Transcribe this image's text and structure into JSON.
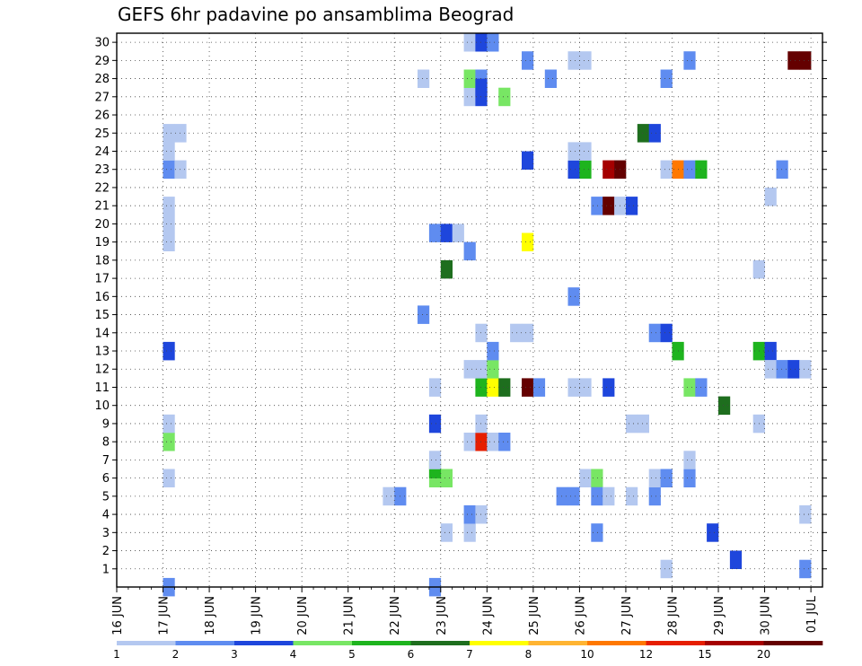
{
  "chart_data": {
    "type": "heatmap",
    "title": "GEFS 6hr padavine po ansamblima Beograd",
    "xlabel": "",
    "ylabel": "",
    "x_tick_labels": [
      "16 JUN",
      "17 JUN",
      "18 JUN",
      "19 JUN",
      "20 JUN",
      "21 JUN",
      "22 JUN",
      "23 JUN",
      "24 JUN",
      "25 JUN",
      "26 JUN",
      "27 JUN",
      "28 JUN",
      "29 JUN",
      "30 JUN",
      "01 JUL"
    ],
    "xlim_days": [
      0,
      15.25
    ],
    "y_tick_labels": [
      "1",
      "2",
      "3",
      "4",
      "5",
      "6",
      "7",
      "8",
      "9",
      "10",
      "11",
      "12",
      "13",
      "14",
      "15",
      "16",
      "17",
      "18",
      "19",
      "20",
      "21",
      "22",
      "23",
      "24",
      "25",
      "26",
      "27",
      "28",
      "29",
      "30"
    ],
    "ylim": [
      0,
      30
    ],
    "grid": true,
    "colorbar": {
      "thresholds": [
        "1",
        "2",
        "3",
        "4",
        "5",
        "6",
        "7",
        "8",
        "10",
        "12",
        "15",
        "20"
      ],
      "colors": [
        "#b4c8f0",
        "#5f8cf0",
        "#1e46dc",
        "#78e664",
        "#1eb41e",
        "#1e6e1e",
        "#ffff00",
        "#ffb432",
        "#ff7800",
        "#e61e00",
        "#a50000",
        "#640000"
      ]
    },
    "cells": [
      {
        "x": 1,
        "y": 0,
        "c": 1
      },
      {
        "x": 1,
        "y": 6,
        "c": 0
      },
      {
        "x": 1,
        "y": 8,
        "c": 3
      },
      {
        "x": 1,
        "y": 9,
        "c": 0
      },
      {
        "x": 1,
        "y": 13,
        "c": 2
      },
      {
        "x": 1,
        "y": 19,
        "c": 0
      },
      {
        "x": 1,
        "y": 20,
        "c": 0
      },
      {
        "x": 1,
        "y": 21,
        "c": 0
      },
      {
        "x": 1,
        "y": 23,
        "c": 1
      },
      {
        "x": 1.25,
        "y": 23,
        "c": 0
      },
      {
        "x": 1,
        "y": 24,
        "c": 0
      },
      {
        "x": 1,
        "y": 25,
        "c": 0
      },
      {
        "x": 1.25,
        "y": 25,
        "c": 0
      },
      {
        "x": 5.75,
        "y": 5,
        "c": 0
      },
      {
        "x": 6,
        "y": 5,
        "c": 1
      },
      {
        "x": 6.5,
        "y": 15,
        "c": 1
      },
      {
        "x": 6.5,
        "y": 28,
        "c": 0
      },
      {
        "x": 6.75,
        "y": 0,
        "c": 1
      },
      {
        "x": 6.75,
        "y": 6,
        "c": 3
      },
      {
        "x": 7,
        "y": 6,
        "c": 3
      },
      {
        "x": 6.75,
        "y": 6.5,
        "c": 4
      },
      {
        "x": 6.75,
        "y": 7,
        "c": 0
      },
      {
        "x": 6.75,
        "y": 9,
        "c": 2
      },
      {
        "x": 6.75,
        "y": 11,
        "c": 0
      },
      {
        "x": 6.75,
        "y": 19.5,
        "c": 1
      },
      {
        "x": 7,
        "y": 19.5,
        "c": 2
      },
      {
        "x": 7.25,
        "y": 19.5,
        "c": 0
      },
      {
        "x": 7,
        "y": 3,
        "c": 0
      },
      {
        "x": 7,
        "y": 17.5,
        "c": 5
      },
      {
        "x": 7.5,
        "y": 3,
        "c": 0
      },
      {
        "x": 7.5,
        "y": 4,
        "c": 1
      },
      {
        "x": 7.75,
        "y": 4,
        "c": 0
      },
      {
        "x": 7.5,
        "y": 8,
        "c": 0
      },
      {
        "x": 7.75,
        "y": 8,
        "c": 9
      },
      {
        "x": 8,
        "y": 8,
        "c": 0
      },
      {
        "x": 8.25,
        "y": 8,
        "c": 1
      },
      {
        "x": 7.75,
        "y": 9,
        "c": 0
      },
      {
        "x": 7.75,
        "y": 11,
        "c": 4
      },
      {
        "x": 8,
        "y": 11,
        "c": 6
      },
      {
        "x": 8.25,
        "y": 11,
        "c": 5
      },
      {
        "x": 7.5,
        "y": 12,
        "c": 0
      },
      {
        "x": 7.75,
        "y": 12,
        "c": 0
      },
      {
        "x": 8,
        "y": 12,
        "c": 3
      },
      {
        "x": 8,
        "y": 13,
        "c": 1
      },
      {
        "x": 7.75,
        "y": 14,
        "c": 0
      },
      {
        "x": 7.5,
        "y": 18.5,
        "c": 1
      },
      {
        "x": 7.5,
        "y": 27,
        "c": 0
      },
      {
        "x": 7.75,
        "y": 27,
        "c": 2
      },
      {
        "x": 8.25,
        "y": 27,
        "c": 3
      },
      {
        "x": 7.5,
        "y": 28,
        "c": 3
      },
      {
        "x": 7.75,
        "y": 28,
        "c": 1
      },
      {
        "x": 7.75,
        "y": 27.5,
        "c": 2
      },
      {
        "x": 7.5,
        "y": 30,
        "c": 0
      },
      {
        "x": 7.75,
        "y": 30,
        "c": 2
      },
      {
        "x": 8,
        "y": 30,
        "c": 1
      },
      {
        "x": 8.5,
        "y": 14,
        "c": 0
      },
      {
        "x": 8.75,
        "y": 14,
        "c": 0
      },
      {
        "x": 8.75,
        "y": 19,
        "c": 6
      },
      {
        "x": 8.75,
        "y": 11,
        "c": 11
      },
      {
        "x": 9,
        "y": 11,
        "c": 1
      },
      {
        "x": 8.75,
        "y": 23.5,
        "c": 2
      },
      {
        "x": 8.75,
        "y": 29,
        "c": 1
      },
      {
        "x": 9.25,
        "y": 28,
        "c": 1
      },
      {
        "x": 9.5,
        "y": 5,
        "c": 1
      },
      {
        "x": 9.75,
        "y": 5,
        "c": 1
      },
      {
        "x": 9.75,
        "y": 11,
        "c": 0
      },
      {
        "x": 10,
        "y": 11,
        "c": 0
      },
      {
        "x": 9.75,
        "y": 16,
        "c": 1
      },
      {
        "x": 9.75,
        "y": 23,
        "c": 2
      },
      {
        "x": 10,
        "y": 23,
        "c": 4
      },
      {
        "x": 9.75,
        "y": 24,
        "c": 0
      },
      {
        "x": 10,
        "y": 24,
        "c": 0
      },
      {
        "x": 9.75,
        "y": 29,
        "c": 0
      },
      {
        "x": 10,
        "y": 29,
        "c": 0
      },
      {
        "x": 10,
        "y": 6,
        "c": 0
      },
      {
        "x": 10.25,
        "y": 6,
        "c": 3
      },
      {
        "x": 10.25,
        "y": 5,
        "c": 1
      },
      {
        "x": 10.5,
        "y": 5,
        "c": 0
      },
      {
        "x": 10.25,
        "y": 3,
        "c": 1
      },
      {
        "x": 10.5,
        "y": 11,
        "c": 2
      },
      {
        "x": 10.25,
        "y": 21,
        "c": 1
      },
      {
        "x": 10.5,
        "y": 21,
        "c": 11
      },
      {
        "x": 10.75,
        "y": 21,
        "c": 0
      },
      {
        "x": 11,
        "y": 21,
        "c": 2
      },
      {
        "x": 10.5,
        "y": 23,
        "c": 10
      },
      {
        "x": 10.75,
        "y": 23,
        "c": 11
      },
      {
        "x": 11,
        "y": 5,
        "c": 0
      },
      {
        "x": 11,
        "y": 9,
        "c": 0
      },
      {
        "x": 11.25,
        "y": 9,
        "c": 0
      },
      {
        "x": 11.25,
        "y": 25,
        "c": 5
      },
      {
        "x": 11.5,
        "y": 25,
        "c": 2
      },
      {
        "x": 11.5,
        "y": 5,
        "c": 1
      },
      {
        "x": 11.5,
        "y": 6,
        "c": 0
      },
      {
        "x": 11.75,
        "y": 6,
        "c": 1
      },
      {
        "x": 11.5,
        "y": 14,
        "c": 1
      },
      {
        "x": 11.75,
        "y": 14,
        "c": 2
      },
      {
        "x": 11.75,
        "y": 1,
        "c": 0
      },
      {
        "x": 11.75,
        "y": 23,
        "c": 0
      },
      {
        "x": 12,
        "y": 23,
        "c": 8
      },
      {
        "x": 12.25,
        "y": 23,
        "c": 1
      },
      {
        "x": 12.5,
        "y": 23,
        "c": 4
      },
      {
        "x": 12,
        "y": 13,
        "c": 4
      },
      {
        "x": 11.75,
        "y": 28,
        "c": 1
      },
      {
        "x": 12.25,
        "y": 6,
        "c": 1
      },
      {
        "x": 12.25,
        "y": 7,
        "c": 0
      },
      {
        "x": 12.25,
        "y": 11,
        "c": 3
      },
      {
        "x": 12.5,
        "y": 11,
        "c": 1
      },
      {
        "x": 12.25,
        "y": 29,
        "c": 1
      },
      {
        "x": 12.75,
        "y": 3,
        "c": 2
      },
      {
        "x": 13,
        "y": 10,
        "c": 5
      },
      {
        "x": 13.25,
        "y": 1.5,
        "c": 2
      },
      {
        "x": 13.75,
        "y": 9,
        "c": 0
      },
      {
        "x": 13.75,
        "y": 13,
        "c": 4
      },
      {
        "x": 14,
        "y": 13,
        "c": 2
      },
      {
        "x": 13.75,
        "y": 17.5,
        "c": 0
      },
      {
        "x": 14,
        "y": 12,
        "c": 0
      },
      {
        "x": 14.25,
        "y": 12,
        "c": 1
      },
      {
        "x": 14.5,
        "y": 12,
        "c": 2
      },
      {
        "x": 14.75,
        "y": 12,
        "c": 0
      },
      {
        "x": 14,
        "y": 21.5,
        "c": 0
      },
      {
        "x": 14.25,
        "y": 23,
        "c": 1
      },
      {
        "x": 14.5,
        "y": 29,
        "c": 11
      },
      {
        "x": 14.75,
        "y": 29,
        "c": 11
      },
      {
        "x": 14.75,
        "y": 4,
        "c": 0
      },
      {
        "x": 14.75,
        "y": 1,
        "c": 1
      }
    ]
  }
}
